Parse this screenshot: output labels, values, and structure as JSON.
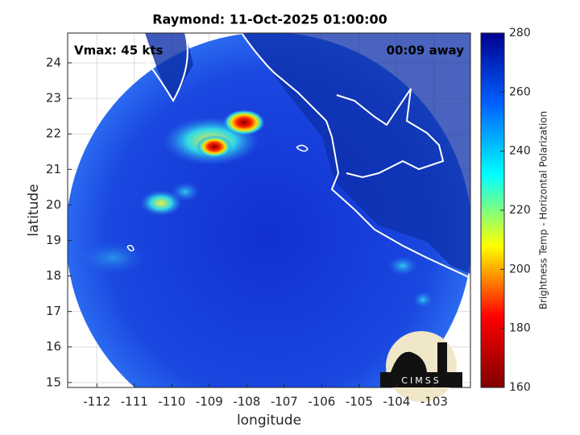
{
  "title": "Raymond: 11-Oct-2025 01:00:00",
  "annotations": {
    "vmax": "Vmax: 45 kts",
    "time": "00:09 away"
  },
  "axes": {
    "xlabel": "longitude",
    "ylabel": "latitude",
    "xlim": [
      -112.78,
      -102.03
    ],
    "ylim": [
      14.86,
      24.84
    ],
    "xticks": [
      -112,
      -111,
      -110,
      -109,
      -108,
      -107,
      -106,
      -105,
      -104,
      -103
    ],
    "yticks": [
      15,
      16,
      17,
      18,
      19,
      20,
      21,
      22,
      23,
      24
    ],
    "grid": true
  },
  "colorbar": {
    "label": "Brightness Temp - Horizontal Polarization",
    "lim": [
      160,
      280
    ],
    "ticks": [
      160,
      180,
      200,
      220,
      240,
      260,
      280
    ],
    "colormap": [
      "#7f0000",
      "#ff0000",
      "#ffff00",
      "#00ffff",
      "#0060ff",
      "#00008f"
    ]
  },
  "logo": "CIMSS"
}
